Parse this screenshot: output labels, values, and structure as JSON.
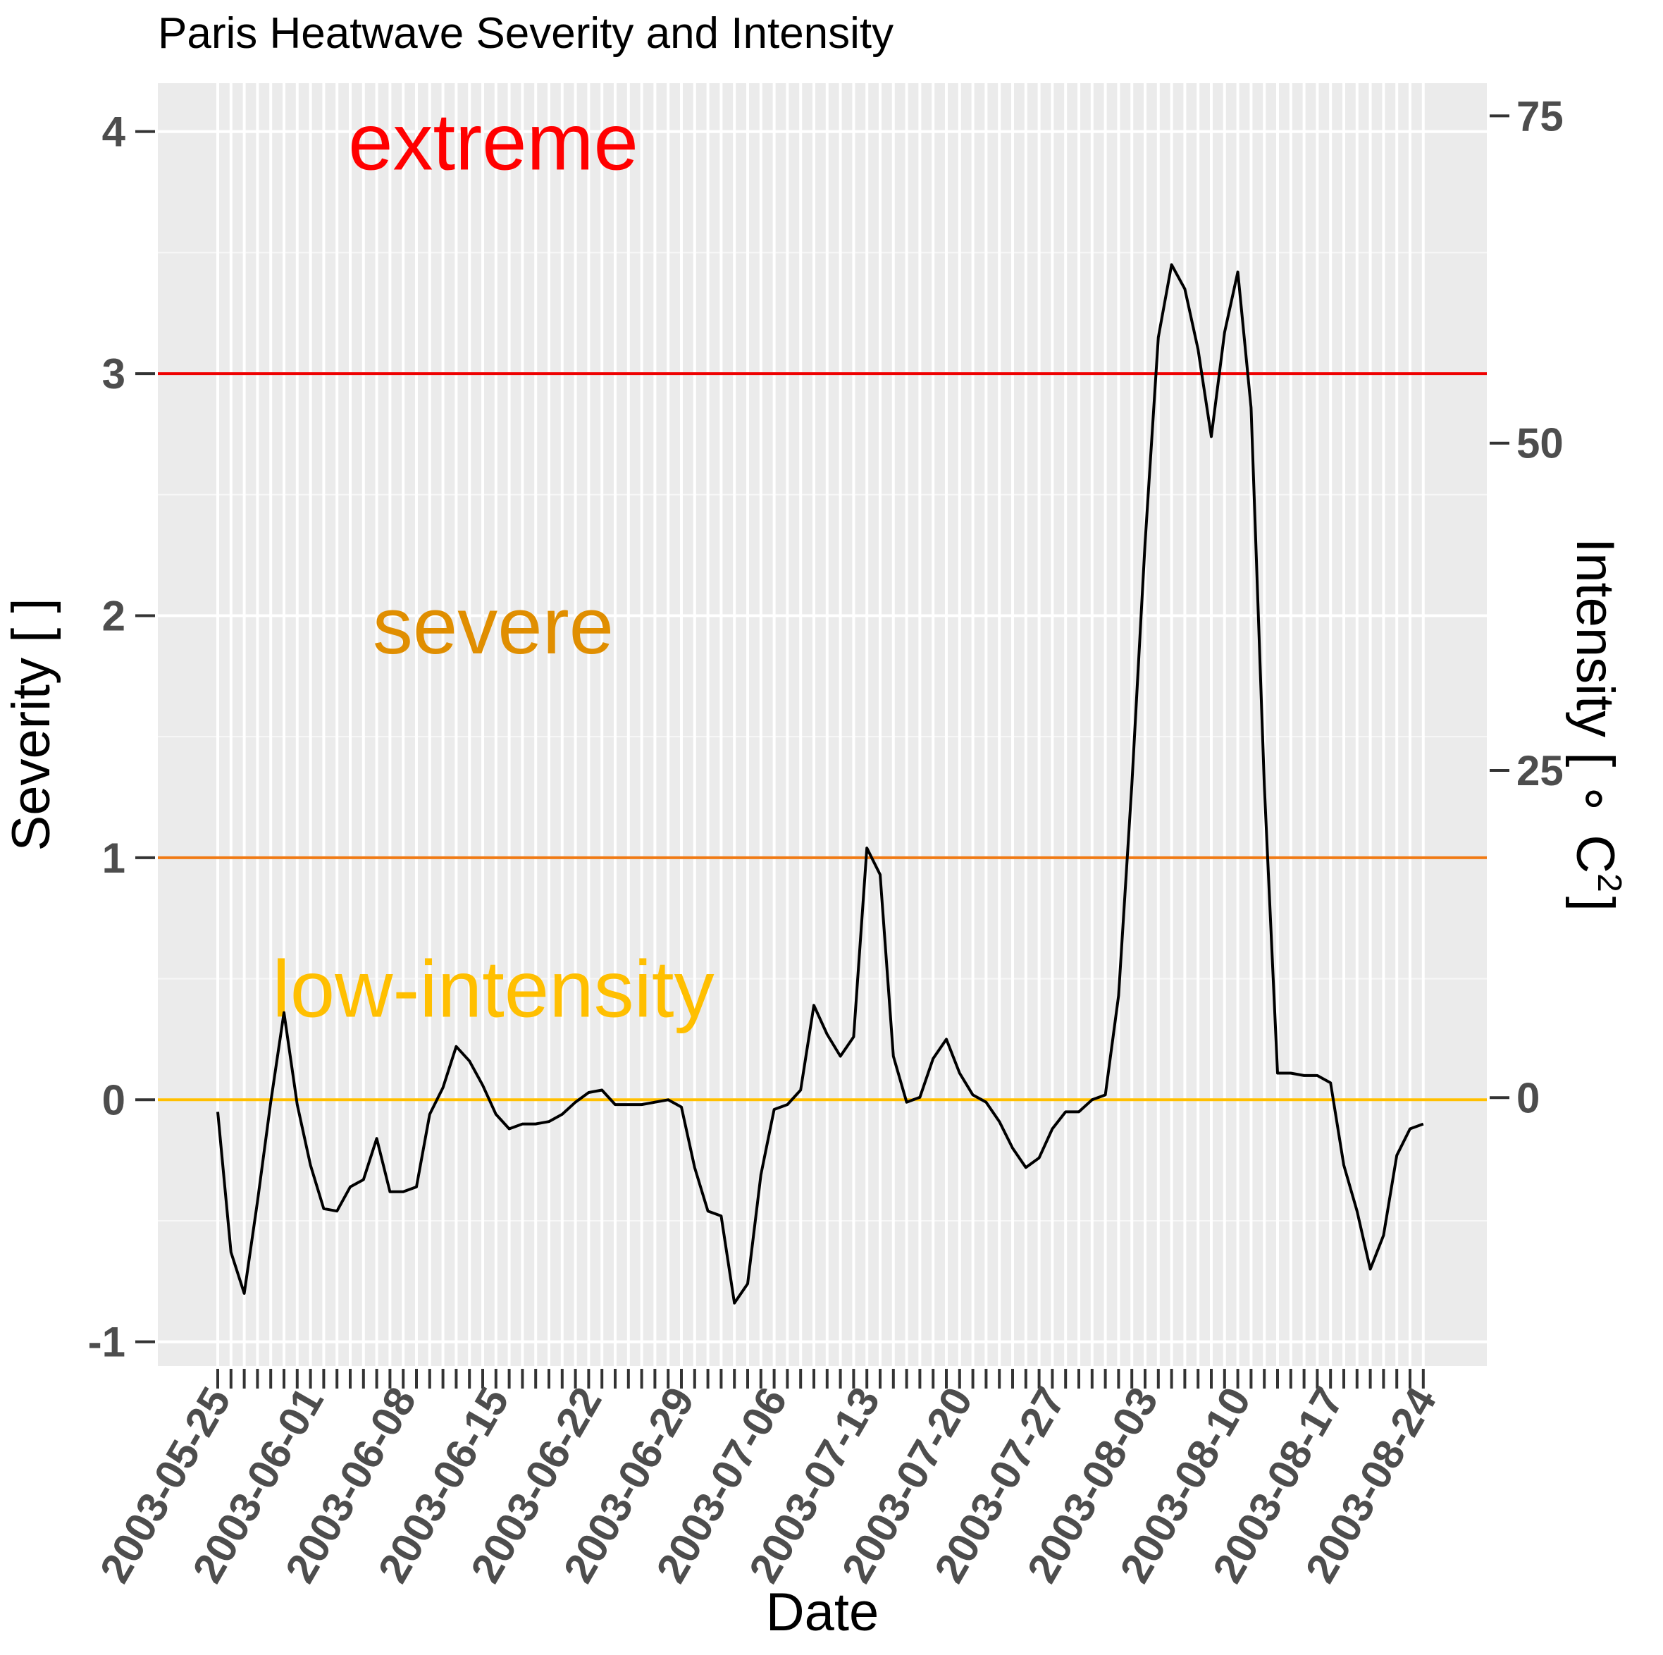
{
  "chart_data": {
    "type": "line",
    "title": "Paris Heatwave Severity and Intensity",
    "xlabel": "Date",
    "ylabel": "Severity [ ]",
    "y2label_main": "Intensity [ ",
    "y2label_circ": "∘",
    "y2label_unit": "C",
    "y2label_exp": "2",
    "y2label_close": "]",
    "ylim": [
      -1.1,
      4.2
    ],
    "y2lim": [
      -20.5,
      77.5
    ],
    "yticks": [
      -1,
      0,
      1,
      2,
      3,
      4
    ],
    "ytick_labels": [
      "-1",
      "0",
      "1",
      "2",
      "3",
      "4"
    ],
    "y2ticks": [
      0,
      25,
      50,
      75
    ],
    "y2tick_labels": [
      "0",
      "25",
      "50",
      "75"
    ],
    "x_start_date": "2003-05-25",
    "x_days": 92,
    "x_tick_labels": [
      "2003-05-25",
      "2003-06-01",
      "2003-06-08",
      "2003-06-15",
      "2003-06-22",
      "2003-06-29",
      "2003-07-06",
      "2003-07-13",
      "2003-07-20",
      "2003-07-27",
      "2003-08-03",
      "2003-08-10",
      "2003-08-17",
      "2003-08-24"
    ],
    "thresholds": [
      {
        "label": "extreme",
        "value": 3,
        "color": "#ee0000",
        "label_color": "#ff0000",
        "label_y": 3.96
      },
      {
        "label": "severe",
        "value": 1,
        "color": "#f07a14",
        "label_color": "#e08e00",
        "label_y": 1.96
      },
      {
        "label": "low-intensity",
        "value": 0,
        "color": "#ffbf00",
        "label_color": "#ffbf00",
        "label_y": 0.46
      }
    ],
    "series": [
      {
        "name": "Severity",
        "color": "#000000",
        "values": [
          -0.05,
          -0.63,
          -0.8,
          -0.42,
          -0.01,
          0.36,
          -0.02,
          -0.27,
          -0.45,
          -0.46,
          -0.36,
          -0.33,
          -0.16,
          -0.38,
          -0.38,
          -0.36,
          -0.06,
          0.05,
          0.22,
          0.16,
          0.06,
          -0.06,
          -0.12,
          -0.1,
          -0.1,
          -0.09,
          -0.06,
          -0.01,
          0.03,
          0.04,
          -0.02,
          -0.02,
          -0.02,
          -0.01,
          0.0,
          -0.03,
          -0.28,
          -0.46,
          -0.48,
          -0.84,
          -0.76,
          -0.31,
          -0.04,
          -0.02,
          0.04,
          0.39,
          0.27,
          0.18,
          0.26,
          1.04,
          0.93,
          0.18,
          -0.01,
          0.01,
          0.17,
          0.25,
          0.11,
          0.02,
          -0.01,
          -0.09,
          -0.2,
          -0.28,
          -0.24,
          -0.12,
          -0.05,
          -0.05,
          0.0,
          0.02,
          0.43,
          1.3,
          2.3,
          3.15,
          3.45,
          3.35,
          3.1,
          2.74,
          3.17,
          3.42,
          2.86,
          1.3,
          0.11,
          0.11,
          0.1,
          0.1,
          0.07,
          -0.27,
          -0.46,
          -0.7,
          -0.56,
          -0.23,
          -0.12,
          -0.1
        ]
      }
    ]
  }
}
